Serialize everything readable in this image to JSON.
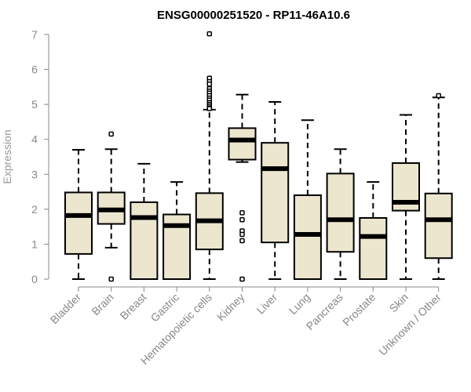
{
  "chart_data": {
    "type": "box",
    "title": "ENSG00000251520 - RP11-46A10.6",
    "xlabel": "",
    "ylabel": "Expression",
    "ylim": [
      0,
      7
    ],
    "yticks": [
      0,
      1,
      2,
      3,
      4,
      5,
      6,
      7
    ],
    "grid": false,
    "colors": {
      "box_fill": "#ede6cf",
      "box_stroke": "#000000",
      "median": "#000000",
      "axis": "#888888"
    },
    "categories": [
      "Bladder",
      "Brain",
      "Breast",
      "Gastric",
      "Hematopoietic cells",
      "Kidney",
      "Liver",
      "Lung",
      "Pancreas",
      "Prostate",
      "Skin",
      "Unknown / Other"
    ],
    "boxes": [
      {
        "min": 0,
        "q1": 0.72,
        "median": 1.82,
        "q3": 2.48,
        "max": 3.7,
        "outliers": []
      },
      {
        "min": 0.9,
        "q1": 1.58,
        "median": 1.98,
        "q3": 2.48,
        "max": 3.72,
        "outliers": [
          4.15,
          0
        ]
      },
      {
        "min": 0,
        "q1": 0,
        "median": 1.76,
        "q3": 2.2,
        "max": 3.3,
        "outliers": []
      },
      {
        "min": 0,
        "q1": 0,
        "median": 1.53,
        "q3": 1.85,
        "max": 2.78,
        "outliers": []
      },
      {
        "min": 0,
        "q1": 0.85,
        "median": 1.67,
        "q3": 2.46,
        "max": 4.85,
        "outliers": [
          7.02,
          5.75,
          5.65,
          5.58,
          5.45,
          5.38,
          5.32,
          5.25,
          5.18,
          5.12,
          5.05,
          5.0,
          4.95,
          4.9,
          4.88
        ]
      },
      {
        "min": 3.35,
        "q1": 3.42,
        "median": 3.98,
        "q3": 4.32,
        "max": 5.28,
        "outliers": [
          1.9,
          1.7,
          1.38,
          1.28,
          1.1,
          0
        ]
      },
      {
        "min": 0,
        "q1": 1.05,
        "median": 3.16,
        "q3": 3.9,
        "max": 5.07,
        "outliers": []
      },
      {
        "min": 0,
        "q1": 0,
        "median": 1.28,
        "q3": 2.4,
        "max": 4.55,
        "outliers": []
      },
      {
        "min": 0,
        "q1": 0.78,
        "median": 1.7,
        "q3": 3.02,
        "max": 3.72,
        "outliers": []
      },
      {
        "min": 0,
        "q1": 0,
        "median": 1.22,
        "q3": 1.75,
        "max": 2.78,
        "outliers": []
      },
      {
        "min": 0,
        "q1": 1.96,
        "median": 2.2,
        "q3": 3.32,
        "max": 4.7,
        "outliers": []
      },
      {
        "min": 0,
        "q1": 0.6,
        "median": 1.7,
        "q3": 2.45,
        "max": 5.2,
        "outliers": [
          5.25
        ]
      }
    ]
  }
}
